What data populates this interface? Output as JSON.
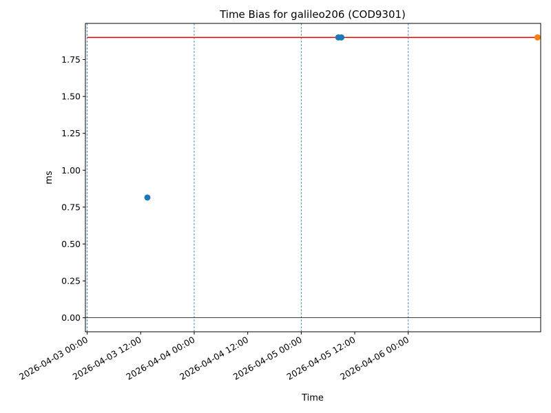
{
  "chart_data": {
    "type": "scatter",
    "title": "Time Bias for galileo206 (COD9301)",
    "xlabel": "Time",
    "ylabel": "ms",
    "x_axis_type": "datetime",
    "xlim": [
      "2026-04-02 23:36",
      "2026-04-07 05:42"
    ],
    "ylim": [
      -0.095,
      1.995
    ],
    "x_ticks": [
      "2026-04-03 00:00",
      "2026-04-03 12:00",
      "2026-04-04 00:00",
      "2026-04-04 12:00",
      "2026-04-05 00:00",
      "2026-04-05 12:00",
      "2026-04-06 00:00"
    ],
    "y_ticks": [
      0.0,
      0.25,
      0.5,
      0.75,
      1.0,
      1.25,
      1.5,
      1.75
    ],
    "y_tick_labels": [
      "0.00",
      "0.25",
      "0.50",
      "0.75",
      "1.00",
      "1.25",
      "1.50",
      "1.75"
    ],
    "grid": false,
    "vertical_markers": {
      "style": "dashed",
      "color": "#1f77b4",
      "x": [
        "2026-04-03 00:00",
        "2026-04-04 00:00",
        "2026-04-05 00:00",
        "2026-04-06 00:00"
      ]
    },
    "zero_line": {
      "y": 0,
      "color": "#000000"
    },
    "reference_line": {
      "y": 1.9,
      "color": "#e00000",
      "x_start": "2026-04-03 00:00",
      "x_end": "2026-04-07 05:00"
    },
    "series": [
      {
        "color": "#1f77b4",
        "points": [
          {
            "x": "2026-04-03 13:30",
            "y": 0.815
          },
          {
            "x": "2026-04-05 08:20",
            "y": 1.9
          },
          {
            "x": "2026-04-05 09:00",
            "y": 1.9
          }
        ]
      },
      {
        "color": "#ff7f0e",
        "points": [
          {
            "x": "2026-04-07 05:00",
            "y": 1.9
          }
        ]
      }
    ]
  }
}
